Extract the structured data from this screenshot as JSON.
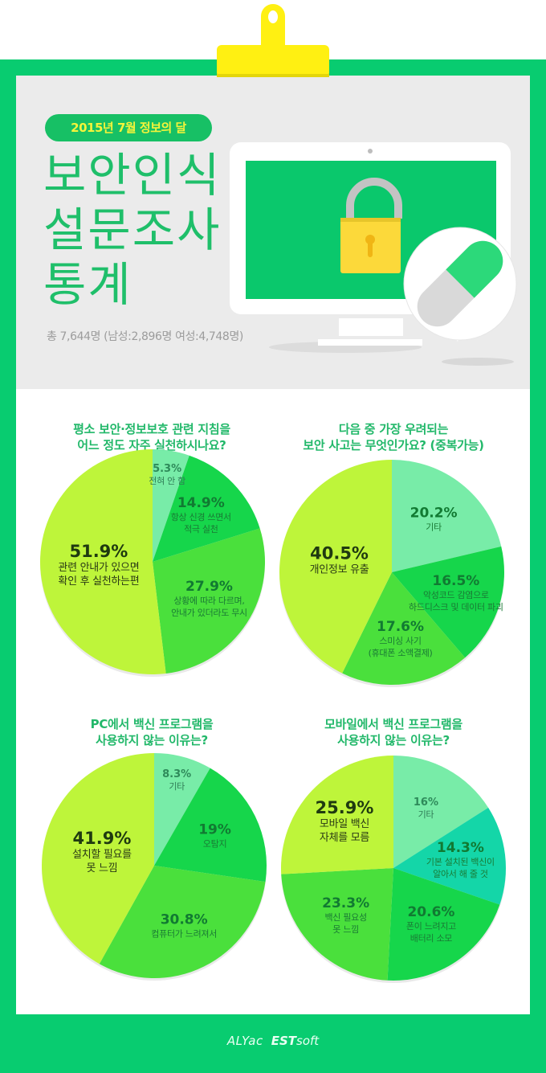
{
  "header": {
    "badge": "2015년 7월 정보의 달",
    "title_lines": [
      "보안인식",
      "설문조사",
      "통계"
    ],
    "respondents": "총 7,644명 (남성:2,896명 여성:4,748명)"
  },
  "illustration": {
    "icons": [
      "monitor-icon",
      "padlock-icon",
      "pill-capsule-icon"
    ]
  },
  "colors": {
    "frame_green": "#08cc70",
    "badge_green": "#17c065",
    "badge_text": "#f4f43a",
    "title_green": "#1fbf6a",
    "clip_yellow": "#fff012",
    "slice_lime": "#bef53a",
    "slice_mint": "#78eca8",
    "slice_green": "#16d64b",
    "slice_leaf": "#4ae03c",
    "slice_teal": "#14d6a8"
  },
  "chart_data": [
    {
      "type": "pie",
      "title": "평소 보안·정보보호 관련 지침을 어느 정도 자주 실천하시나요?",
      "title_lines": [
        "평소 보안·정보보호 관련 지침을",
        "어느 정도 자주 실천하시나요?"
      ],
      "slices": [
        {
          "value": 5.3,
          "pct": "5.3%",
          "lines": [
            "전혀 안 함"
          ],
          "color": "#78eca8",
          "size": "sm"
        },
        {
          "value": 14.9,
          "pct": "14.9%",
          "lines": [
            "항상 신경 쓰면서",
            "적극 실천"
          ],
          "color": "#16d64b",
          "size": "mid"
        },
        {
          "value": 27.9,
          "pct": "27.9%",
          "lines": [
            "상황에 따라 다르며,",
            "안내가 있더라도 무시"
          ],
          "color": "#4ae03c",
          "size": "mid"
        },
        {
          "value": 51.9,
          "pct": "51.9%",
          "lines": [
            "관련 안내가 있으면",
            "확인 후 실천하는편"
          ],
          "color": "#bef53a",
          "size": "big"
        }
      ]
    },
    {
      "type": "pie",
      "title": "다음 중 가장 우려되는 보안 사고는 무엇인가요? (중복가능)",
      "title_lines": [
        "다음 중 가장 우려되는",
        "보안 사고는 무엇인가요? (중복가능)"
      ],
      "slices": [
        {
          "value": 20.2,
          "pct": "20.2%",
          "lines": [
            "기타"
          ],
          "color": "#78eca8",
          "size": "mid"
        },
        {
          "value": 16.5,
          "pct": "16.5%",
          "lines": [
            "악성코드 감염으로",
            "하드디스크 및 데이터 파괴"
          ],
          "color": "#16d64b",
          "size": "mid"
        },
        {
          "value": 17.6,
          "pct": "17.6%",
          "lines": [
            "스미싱 사기",
            "(휴대폰 소액결제)"
          ],
          "color": "#4ae03c",
          "size": "mid"
        },
        {
          "value": 40.5,
          "pct": "40.5%",
          "lines": [
            "개인정보 유출"
          ],
          "color": "#bef53a",
          "size": "big"
        }
      ]
    },
    {
      "type": "pie",
      "title": "PC에서 백신 프로그램을 사용하지 않는 이유는?",
      "title_lines": [
        "PC에서 백신 프로그램을",
        "사용하지 않는 이유는?"
      ],
      "slices": [
        {
          "value": 8.3,
          "pct": "8.3%",
          "lines": [
            "기타"
          ],
          "color": "#78eca8",
          "size": "sm"
        },
        {
          "value": 19,
          "pct": "19%",
          "lines": [
            "오탐지"
          ],
          "color": "#16d64b",
          "size": "mid"
        },
        {
          "value": 30.8,
          "pct": "30.8%",
          "lines": [
            "컴퓨터가 느려져서"
          ],
          "color": "#4ae03c",
          "size": "mid"
        },
        {
          "value": 41.9,
          "pct": "41.9%",
          "lines": [
            "설치할 필요를",
            "못 느낌"
          ],
          "color": "#bef53a",
          "size": "big"
        }
      ]
    },
    {
      "type": "pie",
      "title": "모바일에서 백신 프로그램을 사용하지 않는 이유는?",
      "title_lines": [
        "모바일에서 백신 프로그램을",
        "사용하지 않는 이유는?"
      ],
      "slices": [
        {
          "value": 16,
          "pct": "16%",
          "lines": [
            "기타"
          ],
          "color": "#78eca8",
          "size": "sm"
        },
        {
          "value": 14.3,
          "pct": "14.3%",
          "lines": [
            "기본 설치된 백신이",
            "알아서 해 줄 것"
          ],
          "color": "#14d6a8",
          "size": "mid"
        },
        {
          "value": 20.6,
          "pct": "20.6%",
          "lines": [
            "폰이 느려지고",
            "배터리 소모"
          ],
          "color": "#16d64b",
          "size": "mid"
        },
        {
          "value": 23.3,
          "pct": "23.3%",
          "lines": [
            "백신 필요성",
            "못 느낌"
          ],
          "color": "#4ae03c",
          "size": "mid"
        },
        {
          "value": 25.9,
          "pct": "25.9%",
          "lines": [
            "모바일 백신",
            "자체를 모름"
          ],
          "color": "#bef53a",
          "size": "big"
        }
      ]
    }
  ],
  "footer": {
    "brand_alyac": "ALYac",
    "brand_est": "EST",
    "brand_soft": "soft"
  }
}
